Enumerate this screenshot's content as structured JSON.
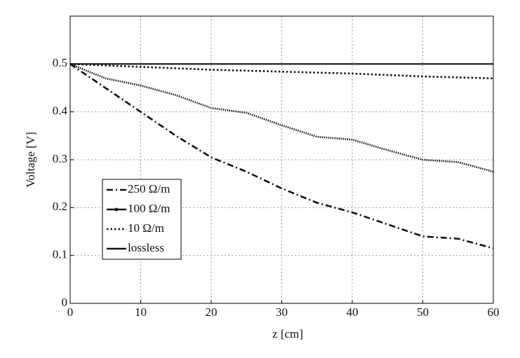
{
  "chart_data": {
    "type": "line",
    "xlabel": "z [cm]",
    "ylabel": "Voltage [V]",
    "x": [
      0,
      5,
      10,
      15,
      20,
      25,
      30,
      35,
      40,
      45,
      50,
      55,
      60
    ],
    "series": [
      {
        "name": "250 Ω/m",
        "color": "#111111",
        "style": "dashdot",
        "values": [
          0.5,
          0.45,
          0.4,
          0.35,
          0.305,
          0.275,
          0.24,
          0.21,
          0.19,
          0.165,
          0.14,
          0.135,
          0.115
        ]
      },
      {
        "name": "100 Ω/m",
        "color": "#111111",
        "style": "marker",
        "values": [
          0.5,
          0.47,
          0.455,
          0.435,
          0.408,
          0.398,
          0.372,
          0.348,
          0.342,
          0.32,
          0.3,
          0.295,
          0.275
        ]
      },
      {
        "name": "10 Ω/m",
        "color": "#111111",
        "style": "dotted",
        "values": [
          0.5,
          0.497,
          0.494,
          0.491,
          0.488,
          0.486,
          0.484,
          0.482,
          0.48,
          0.477,
          0.474,
          0.472,
          0.47
        ]
      },
      {
        "name": "lossless",
        "color": "#111111",
        "style": "solid",
        "values": [
          0.5,
          0.5,
          0.5,
          0.5,
          0.5,
          0.5,
          0.5,
          0.5,
          0.5,
          0.5,
          0.5,
          0.5,
          0.5
        ]
      }
    ],
    "xlim": [
      0,
      60
    ],
    "xticks": [
      0,
      10,
      20,
      30,
      40,
      50,
      60
    ],
    "ylim": [
      0,
      0.6
    ],
    "yticks": [
      0,
      0.1,
      0.2,
      0.3,
      0.4,
      0.5
    ],
    "grid": true,
    "legend": "lower left"
  }
}
